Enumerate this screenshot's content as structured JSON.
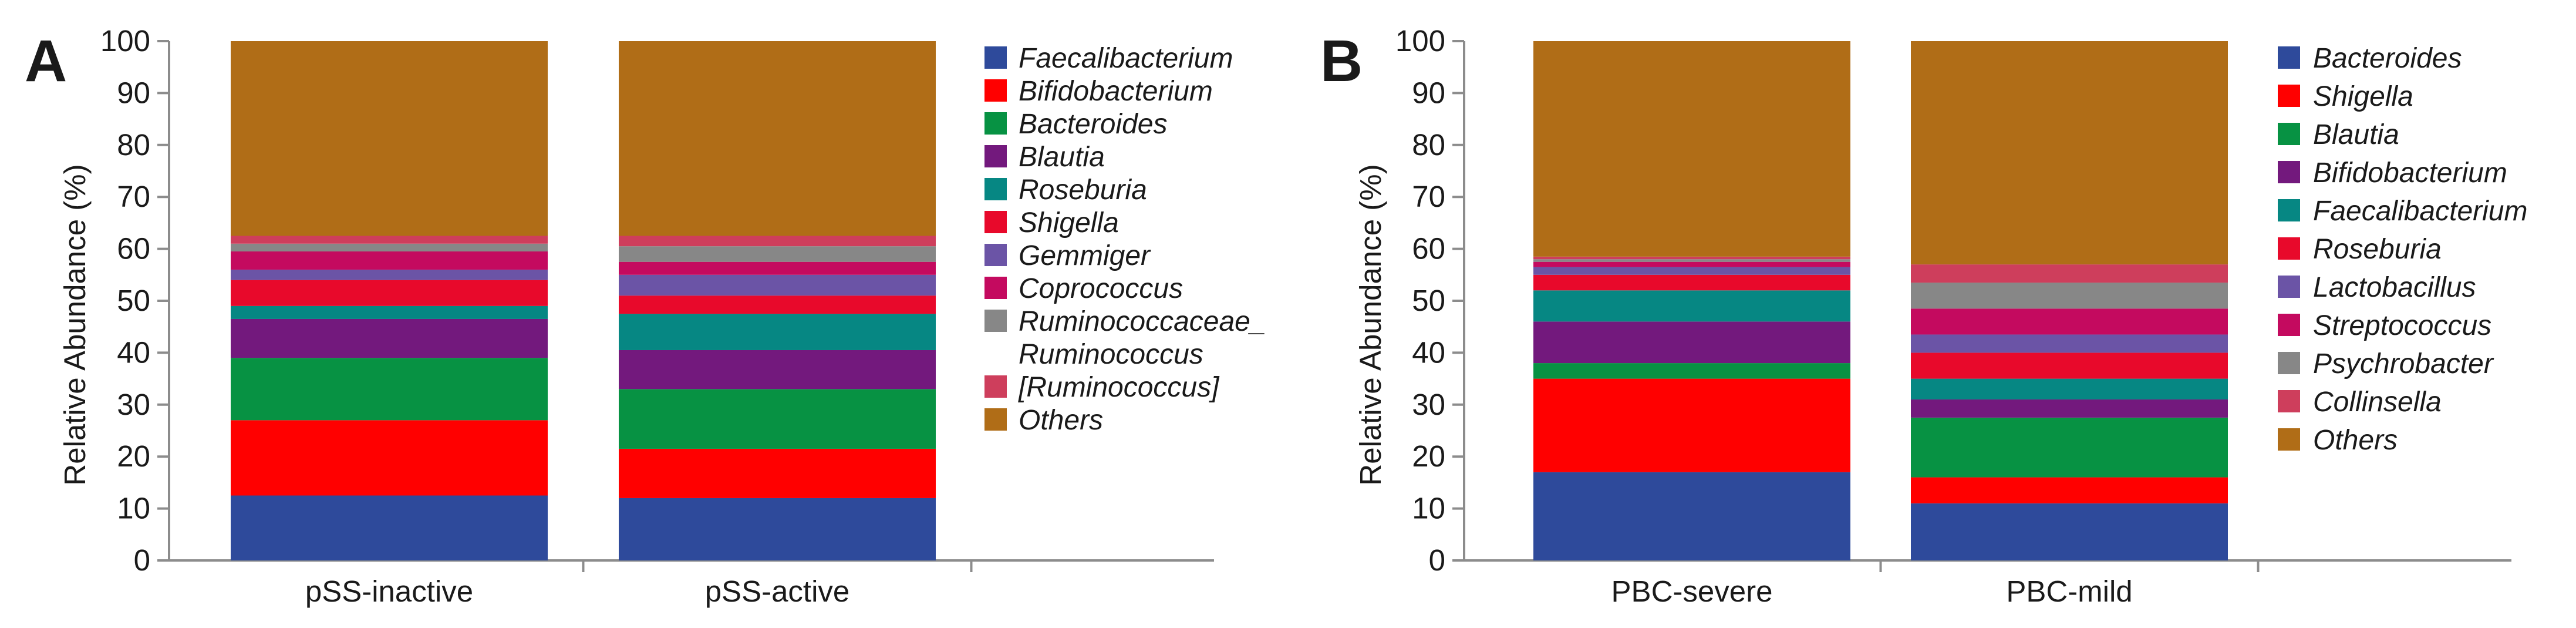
{
  "chart_data": [
    {
      "type": "bar",
      "stacked": true,
      "panel": "A",
      "title": "",
      "xlabel": "",
      "ylabel": "Relative Abundance (%)",
      "ylim": [
        0,
        100
      ],
      "yticks": [
        0,
        10,
        20,
        30,
        40,
        50,
        60,
        70,
        80,
        90,
        100
      ],
      "grid": false,
      "legend_position": "right",
      "categories": [
        "pSS-inactive",
        "pSS-active"
      ],
      "series": [
        {
          "name": "Faecalibacterium",
          "color": "#2e4a9b",
          "values": [
            12.5,
            12
          ]
        },
        {
          "name": "Bifidobacterium",
          "color": "#ff0000",
          "values": [
            14.5,
            9.5
          ]
        },
        {
          "name": "Bacteroides",
          "color": "#079243",
          "values": [
            12,
            11.5
          ]
        },
        {
          "name": "Blautia",
          "color": "#73197d",
          "values": [
            7.5,
            7.5
          ]
        },
        {
          "name": "Roseburia",
          "color": "#068783",
          "values": [
            2.5,
            7
          ]
        },
        {
          "name": "Shigella",
          "color": "#e8092b",
          "values": [
            5,
            3.5
          ]
        },
        {
          "name": "Gemmiger",
          "color": "#6b54a6",
          "values": [
            2,
            4
          ]
        },
        {
          "name": "Coprococcus",
          "color": "#c40a5f",
          "values": [
            3.5,
            2.5
          ]
        },
        {
          "name": "Ruminococcaceae_",
          "name_line2": "Ruminococcus",
          "color": "#878787",
          "values": [
            1.5,
            3
          ]
        },
        {
          "name": "[Ruminococcus]",
          "color": "#ce3e5c",
          "values": [
            1.5,
            2
          ]
        },
        {
          "name": "Others",
          "color": "#b06d17",
          "values": [
            37.5,
            37.5
          ]
        }
      ]
    },
    {
      "type": "bar",
      "stacked": true,
      "panel": "B",
      "title": "",
      "xlabel": "",
      "ylabel": "Relative Abundance (%)",
      "ylim": [
        0,
        100
      ],
      "yticks": [
        0,
        10,
        20,
        30,
        40,
        50,
        60,
        70,
        80,
        90,
        100
      ],
      "grid": false,
      "legend_position": "right",
      "categories": [
        "PBC-severe",
        "PBC-mild"
      ],
      "series": [
        {
          "name": "Bacteroides",
          "color": "#2e4a9b",
          "values": [
            17,
            11
          ]
        },
        {
          "name": "Shigella",
          "color": "#ff0000",
          "values": [
            18,
            5
          ]
        },
        {
          "name": "Blautia",
          "color": "#079243",
          "values": [
            3,
            11.5
          ]
        },
        {
          "name": "Bifidobacterium",
          "color": "#73197d",
          "values": [
            8,
            3.5
          ]
        },
        {
          "name": "Faecalibacterium",
          "color": "#068783",
          "values": [
            6,
            4
          ]
        },
        {
          "name": "Roseburia",
          "color": "#e8092b",
          "values": [
            3,
            5
          ]
        },
        {
          "name": "Lactobacillus",
          "color": "#6b54a6",
          "values": [
            1.5,
            3.5
          ]
        },
        {
          "name": "Streptococcus",
          "color": "#c40a5f",
          "values": [
            1,
            5
          ]
        },
        {
          "name": "Psychrobacter",
          "color": "#878787",
          "values": [
            0.5,
            5
          ]
        },
        {
          "name": "Collinsella",
          "color": "#ce3e5c",
          "values": [
            0.5,
            3.5
          ]
        },
        {
          "name": "Others",
          "color": "#b06d17",
          "values": [
            41.5,
            43
          ]
        }
      ]
    }
  ]
}
